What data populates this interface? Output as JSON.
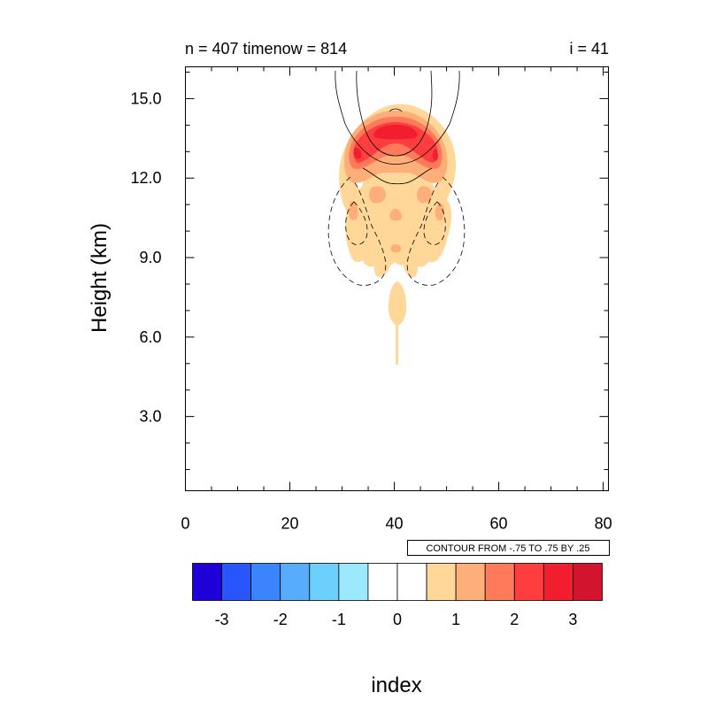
{
  "chart_data": {
    "type": "contour",
    "title_left": "n = 407 timenow = 814",
    "title_right": "i = 41",
    "xlabel": "index",
    "ylabel": "Height (km)",
    "xlim": [
      0,
      81
    ],
    "ylim": [
      0.2,
      16.2
    ],
    "x_ticks": [
      "0",
      "20",
      "40",
      "60",
      "80"
    ],
    "x_tick_values": [
      0,
      20,
      40,
      60,
      80
    ],
    "y_ticks": [
      "3.0",
      "6.0",
      "9.0",
      "12.0",
      "15.0"
    ],
    "y_tick_values": [
      3,
      6,
      9,
      12,
      15
    ],
    "contour_info": "CONTOUR FROM -.75 TO .75 BY .25",
    "shaded_field": {
      "description_levels": "filled contours, peak about 3 near x=41, height 13.8 km",
      "regions": [
        {
          "level": 0.5,
          "color": "#fed799"
        },
        {
          "level": 1.0,
          "color": "#fdae79"
        },
        {
          "level": 1.5,
          "color": "#fe7a5a"
        },
        {
          "level": 2.0,
          "color": "#fe3e3e"
        },
        {
          "level": 2.5,
          "color": "#f21d2f"
        }
      ]
    },
    "colorbar": {
      "colors": [
        "#1f00d8",
        "#2956fc",
        "#3a84fd",
        "#58acfe",
        "#6dcffe",
        "#9ce9fe",
        "#ffffff",
        "#ffffff",
        "#fed799",
        "#fdae79",
        "#fe7a5a",
        "#fe3e3e",
        "#f21d2f",
        "#d2142e"
      ],
      "labels": [
        "-3",
        "-2",
        "-1",
        "0",
        "1",
        "2",
        "3"
      ],
      "label_values": [
        -3,
        -2,
        -1,
        0,
        1,
        2,
        3
      ]
    }
  }
}
